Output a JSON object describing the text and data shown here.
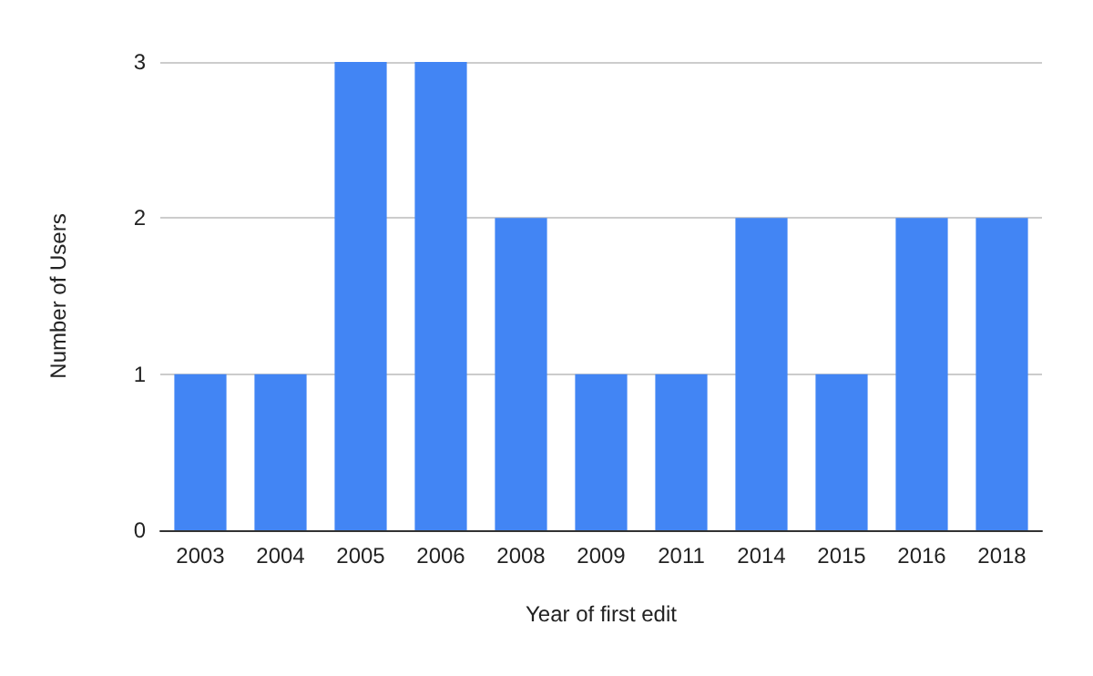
{
  "chart_data": {
    "type": "bar",
    "xlabel": "Year of first edit",
    "ylabel": "Number of Users",
    "categories": [
      "2003",
      "2004",
      "2005",
      "2006",
      "2008",
      "2009",
      "2011",
      "2014",
      "2015",
      "2016",
      "2018"
    ],
    "values": [
      1,
      1,
      3,
      3,
      2,
      1,
      1,
      2,
      1,
      2,
      2
    ],
    "color": "#4285f4",
    "ylim": [
      0,
      3
    ],
    "yticks": [
      0,
      1,
      2,
      3
    ],
    "grid": "y"
  }
}
